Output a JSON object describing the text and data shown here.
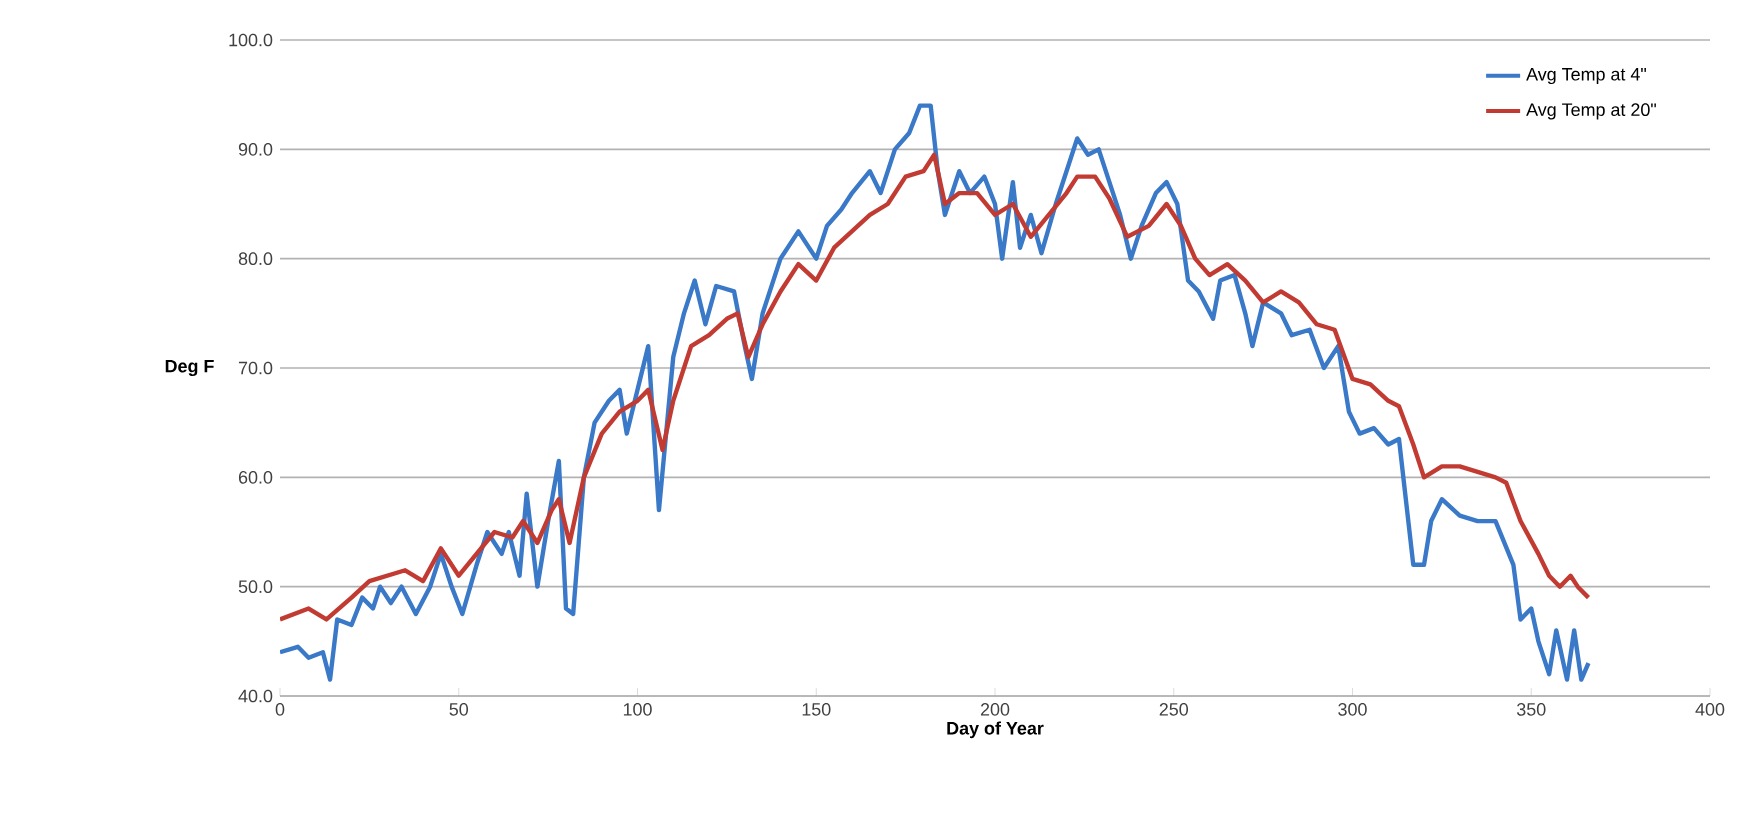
{
  "chart_data": {
    "type": "line",
    "xlabel": "Day of Year",
    "ylabel": "Deg F",
    "xlim": [
      0,
      400
    ],
    "xticks": [
      0,
      50,
      100,
      150,
      200,
      250,
      300,
      350,
      400
    ],
    "ylim": [
      40,
      100
    ],
    "yticks": [
      {
        "value": 40,
        "label": "40.0"
      },
      {
        "value": 50,
        "label": "50.0"
      },
      {
        "value": 60,
        "label": "60.0"
      },
      {
        "value": 70,
        "label": "70.0"
      },
      {
        "value": 80,
        "label": "80.0"
      },
      {
        "value": 90,
        "label": "90.0"
      },
      {
        "value": 100,
        "label": "100.0"
      }
    ],
    "grid": "y",
    "legend": "top right",
    "marker": "none",
    "line_style": "solid",
    "series": [
      {
        "name": "Avg Temp at 4\"",
        "color": "#3a78c8",
        "x": [
          0,
          5,
          8,
          12,
          14,
          16,
          20,
          23,
          26,
          28,
          31,
          34,
          38,
          42,
          45,
          48,
          51,
          55,
          58,
          62,
          64,
          67,
          69,
          72,
          75,
          78,
          80,
          82,
          85,
          88,
          92,
          95,
          97,
          100,
          103,
          105,
          106,
          110,
          113,
          116,
          119,
          122,
          127,
          130,
          132,
          135,
          140,
          145,
          150,
          153,
          157,
          160,
          165,
          168,
          172,
          176,
          179,
          182,
          184,
          186,
          190,
          193,
          197,
          200,
          202,
          205,
          207,
          210,
          213,
          217,
          220,
          223,
          226,
          229,
          232,
          235,
          238,
          241,
          245,
          248,
          251,
          254,
          257,
          261,
          263,
          267,
          270,
          272,
          275,
          280,
          283,
          288,
          292,
          296,
          299,
          302,
          306,
          310,
          313,
          317,
          320,
          322,
          325,
          330,
          335,
          340,
          345,
          347,
          350,
          352,
          355,
          357,
          360,
          362,
          364,
          366
        ],
        "values": [
          44,
          44.5,
          43.5,
          44,
          41.5,
          47,
          46.5,
          49,
          48,
          50,
          48.5,
          50,
          47.5,
          50,
          53,
          50,
          47.5,
          52,
          55,
          53,
          55,
          51,
          58.5,
          50,
          56,
          61.5,
          48,
          47.5,
          60,
          65,
          67,
          68,
          64,
          68,
          72,
          62,
          57,
          71,
          75,
          78,
          74,
          77.5,
          77,
          72,
          69,
          75,
          80,
          82.5,
          80,
          83,
          84.5,
          86,
          88,
          86,
          90,
          91.5,
          94,
          94,
          88,
          84,
          88,
          86,
          87.5,
          85,
          80,
          87,
          81,
          84,
          80.5,
          85,
          88,
          91,
          89.5,
          90,
          87,
          84,
          80,
          83,
          86,
          87,
          85,
          78,
          77,
          74.5,
          78,
          78.5,
          75,
          72,
          76,
          75,
          73,
          73.5,
          70,
          72,
          66,
          64,
          64.5,
          63,
          63.5,
          52,
          52,
          56,
          58,
          56.5,
          56,
          56,
          52,
          47,
          48,
          45,
          42,
          46,
          41.5,
          46,
          41.5,
          43
        ]
      },
      {
        "name": "Avg Temp at 20\"",
        "color": "#c23b33",
        "x": [
          0,
          8,
          13,
          20,
          25,
          30,
          35,
          40,
          45,
          50,
          55,
          60,
          65,
          68,
          72,
          76,
          78,
          81,
          85,
          90,
          95,
          100,
          103,
          107,
          110,
          115,
          120,
          125,
          128,
          131,
          135,
          140,
          145,
          150,
          155,
          160,
          165,
          170,
          175,
          180,
          183,
          186,
          190,
          195,
          200,
          205,
          210,
          215,
          220,
          223,
          228,
          232,
          237,
          243,
          248,
          252,
          256,
          260,
          265,
          270,
          275,
          280,
          285,
          290,
          295,
          300,
          305,
          310,
          313,
          317,
          320,
          325,
          330,
          335,
          340,
          343,
          347,
          352,
          355,
          358,
          361,
          363,
          366
        ],
        "values": [
          47,
          48,
          47,
          49,
          50.5,
          51,
          51.5,
          50.5,
          53.5,
          51,
          53,
          55,
          54.5,
          56,
          54,
          57,
          58,
          54,
          60,
          64,
          66,
          67,
          68,
          62.5,
          67,
          72,
          73,
          74.5,
          75,
          71,
          74,
          77,
          79.5,
          78,
          81,
          82.5,
          84,
          85,
          87.5,
          88,
          89.5,
          85,
          86,
          86,
          84,
          85,
          82,
          84,
          86,
          87.5,
          87.5,
          85.5,
          82,
          83,
          85,
          83,
          80,
          78.5,
          79.5,
          78,
          76,
          77,
          76,
          74,
          73.5,
          69,
          68.5,
          67,
          66.5,
          63,
          60,
          61,
          61,
          60.5,
          60,
          59.5,
          56,
          53,
          51,
          50,
          51,
          50,
          49
        ]
      }
    ]
  }
}
